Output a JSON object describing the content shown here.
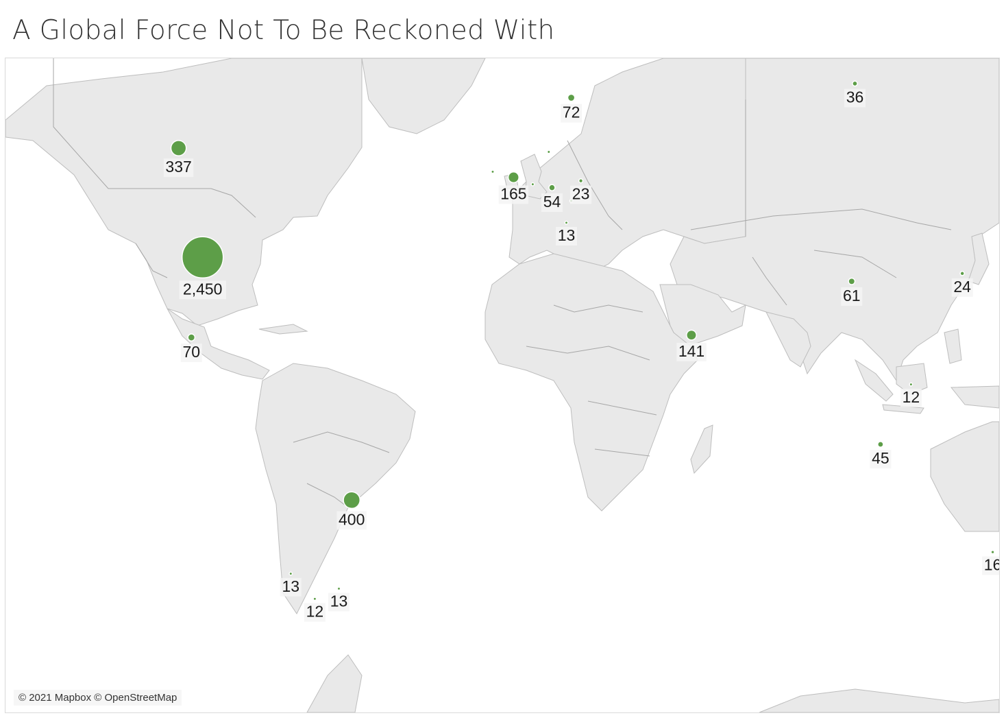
{
  "title": "A Global Force Not To Be Reckoned With",
  "attribution": "© 2021 Mapbox © OpenStreetMap",
  "colors": {
    "marker": "#5d9e48",
    "land": "#e9e9e9",
    "water": "#ffffff",
    "border": "#a6a6a6"
  },
  "map": {
    "projection": "web-mercator",
    "encoding": "circle size = count",
    "labels": "counts"
  },
  "points": [
    {
      "label": "2,450",
      "value": 2450,
      "lon": -98.5,
      "lat": 39.5
    },
    {
      "label": "400",
      "value": 400,
      "lon": -52.0,
      "lat": -14.0
    },
    {
      "label": "337",
      "value": 337,
      "lon": -106.0,
      "lat": 56.5
    },
    {
      "label": "165",
      "value": 165,
      "lon": -1.5,
      "lat": 52.5
    },
    {
      "label": "141",
      "value": 141,
      "lon": 54.0,
      "lat": 24.0
    },
    {
      "label": "72",
      "value": 72,
      "lon": 16.5,
      "lat": 62.5
    },
    {
      "label": "70",
      "value": 70,
      "lon": -102.0,
      "lat": 23.5
    },
    {
      "label": "61",
      "value": 61,
      "lon": 104.0,
      "lat": 35.0
    },
    {
      "label": "54",
      "value": 54,
      "lon": 10.5,
      "lat": 51.0
    },
    {
      "label": "45",
      "value": 45,
      "lon": 113.0,
      "lat": -1.0
    },
    {
      "label": "36",
      "value": 36,
      "lon": 105.0,
      "lat": 64.0
    },
    {
      "label": "24",
      "value": 24,
      "lon": 138.5,
      "lat": 36.5
    },
    {
      "label": "23",
      "value": 23,
      "lon": 19.5,
      "lat": 52.0
    },
    {
      "label": "16",
      "value": 16,
      "lon": 148.0,
      "lat": -25.5
    },
    {
      "label": "13",
      "value": 13,
      "lon": 15.0,
      "lat": 45.5
    },
    {
      "label": "13",
      "value": 13,
      "lon": -71.0,
      "lat": -30.0
    },
    {
      "label": "13",
      "value": 13,
      "lon": -56.0,
      "lat": -33.0
    },
    {
      "label": "12",
      "value": 12,
      "lon": 122.5,
      "lat": 13.0
    },
    {
      "label": "12",
      "value": 12,
      "lon": -63.5,
      "lat": -35.0
    },
    {
      "label": "",
      "value": 2,
      "lon": -8.0,
      "lat": 53.3
    },
    {
      "label": "",
      "value": 2,
      "lon": 4.5,
      "lat": 51.5
    },
    {
      "label": "",
      "value": 2,
      "lon": 9.5,
      "lat": 56.0
    },
    {
      "label": "",
      "value": 2,
      "lon": 16.5,
      "lat": 49.0
    }
  ]
}
